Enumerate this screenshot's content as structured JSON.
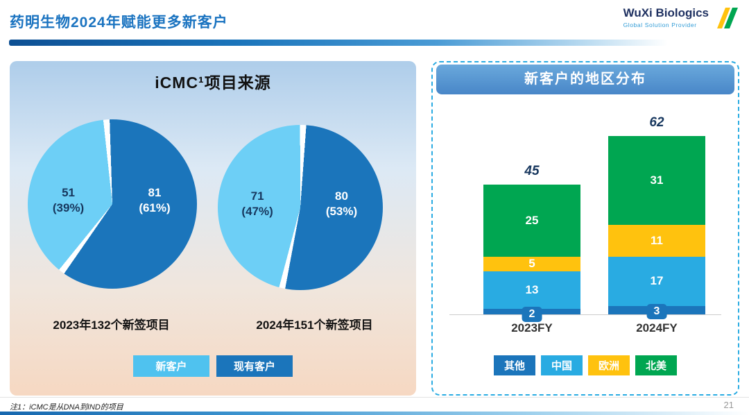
{
  "header": {
    "title": "药明生物2024年赋能更多新客户"
  },
  "logo": {
    "name": "WuXi Biologics",
    "tagline": "Global Solution Provider"
  },
  "left_panel": {
    "title": "iCMC¹项目来源",
    "captions": [
      "2023年132个新签项目",
      "2024年151个新签项目"
    ],
    "legend": [
      {
        "label": "新客户",
        "color": "#4fc2ef"
      },
      {
        "label": "现有客户",
        "color": "#1b75bb"
      }
    ]
  },
  "right_panel": {
    "title": "新客户的地区分布"
  },
  "footer": {
    "footnote": "注1：iCMC是从DNA到IND的项目",
    "page_number": "21"
  },
  "chart_data": [
    {
      "type": "pie",
      "title": "2023年132个新签项目",
      "labels": [
        "新客户",
        "现有客户"
      ],
      "values": [
        51,
        81
      ],
      "percent_labels": [
        "(39%)",
        "(61%)"
      ],
      "colors": [
        "#6dcff6",
        "#1b75bb"
      ],
      "start_angle": -4,
      "total_projects": 132
    },
    {
      "type": "pie",
      "title": "2024年151个新签项目",
      "labels": [
        "新客户",
        "现有客户"
      ],
      "values": [
        71,
        80
      ],
      "percent_labels": [
        "(47%)",
        "(53%)"
      ],
      "colors": [
        "#6dcff6",
        "#1b75bb"
      ],
      "start_angle": 2,
      "total_projects": 151
    },
    {
      "type": "bar",
      "stacked": true,
      "title": "新客户的地区分布",
      "categories": [
        "2023FY",
        "2024FY"
      ],
      "totals": [
        45,
        62
      ],
      "series": [
        {
          "name": "其他",
          "color": "#1b75bb",
          "values": [
            2,
            3
          ]
        },
        {
          "name": "中国",
          "color": "#29abe2",
          "values": [
            13,
            17
          ]
        },
        {
          "name": "欧洲",
          "color": "#ffc20e",
          "values": [
            5,
            11
          ]
        },
        {
          "name": "北美",
          "color": "#00a651",
          "values": [
            25,
            31
          ]
        }
      ],
      "legend_position": "bottom"
    }
  ]
}
